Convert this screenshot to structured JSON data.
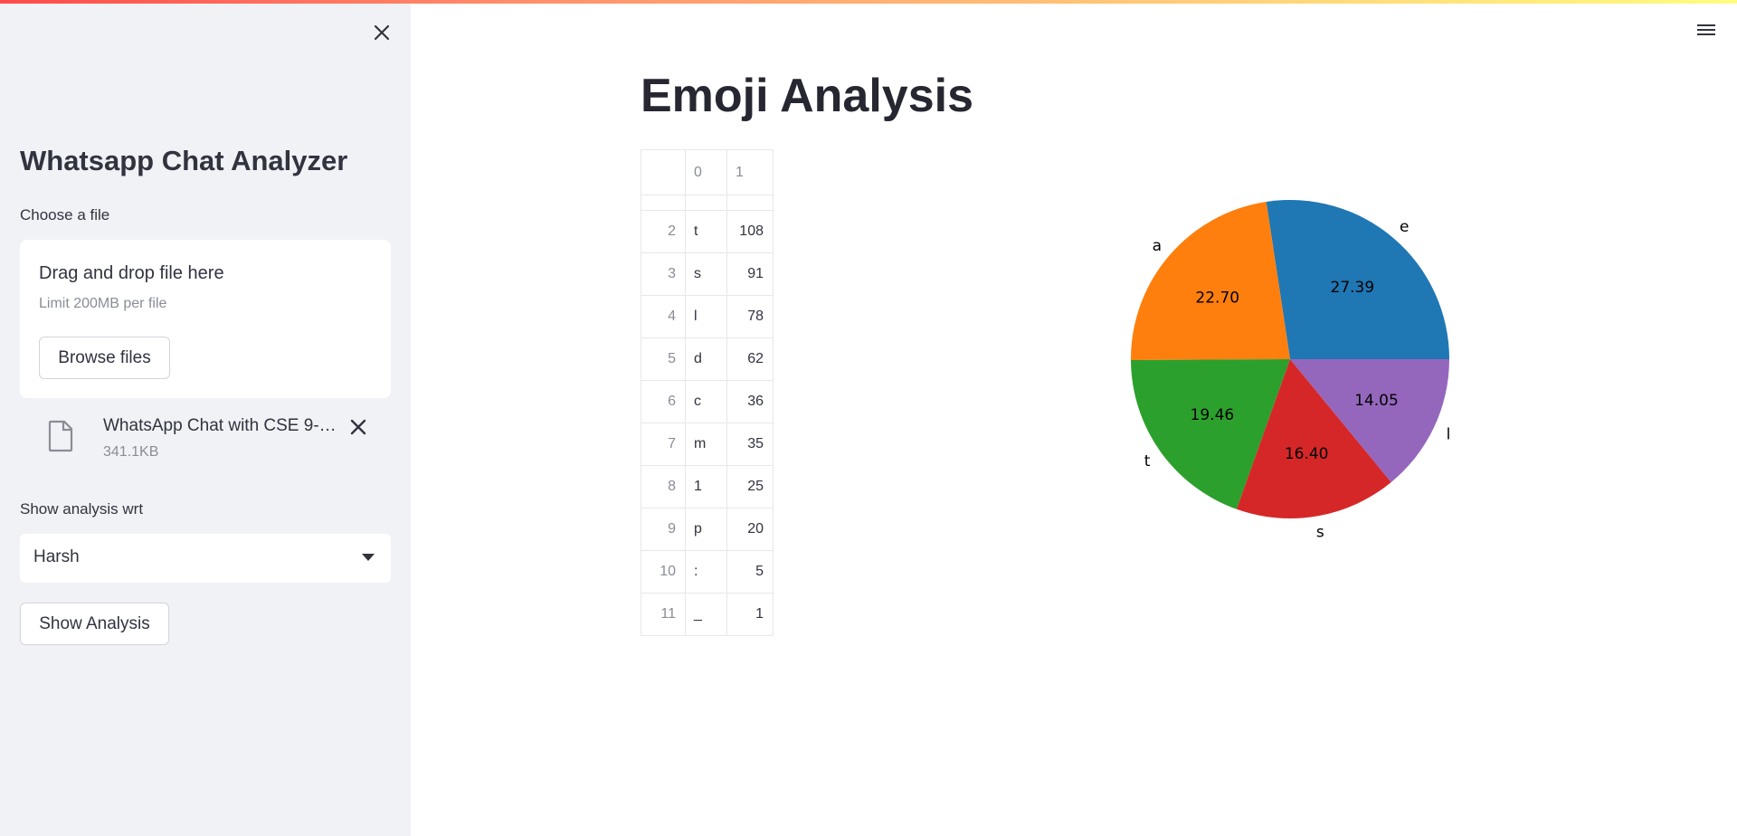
{
  "sidebar": {
    "title": "Whatsapp Chat Analyzer",
    "file_label": "Choose a file",
    "dropzone_title": "Drag and drop file here",
    "dropzone_limit": "Limit 200MB per file",
    "browse_label": "Browse files",
    "file_name": "WhatsApp Chat with CSE 9-…",
    "file_size": "341.1KB",
    "analysis_label": "Show analysis wrt",
    "selected_user": "Harsh",
    "show_button": "Show Analysis"
  },
  "main": {
    "title": "Emoji Analysis",
    "table": {
      "headers": [
        "0",
        "1"
      ],
      "rows": [
        {
          "idx": "2",
          "c0": "t",
          "c1": "108"
        },
        {
          "idx": "3",
          "c0": "s",
          "c1": "91"
        },
        {
          "idx": "4",
          "c0": "l",
          "c1": "78"
        },
        {
          "idx": "5",
          "c0": "d",
          "c1": "62"
        },
        {
          "idx": "6",
          "c0": "c",
          "c1": "36"
        },
        {
          "idx": "7",
          "c0": "m",
          "c1": "35"
        },
        {
          "idx": "8",
          "c0": "1",
          "c1": "25"
        },
        {
          "idx": "9",
          "c0": "p",
          "c1": "20"
        },
        {
          "idx": "10",
          "c0": ":",
          "c1": "5"
        },
        {
          "idx": "11",
          "c0": "_",
          "c1": "1"
        }
      ]
    }
  },
  "chart_data": {
    "type": "pie",
    "categories": [
      "e",
      "a",
      "t",
      "s",
      "l"
    ],
    "values": [
      27.39,
      22.7,
      19.46,
      16.4,
      14.05
    ],
    "labels": [
      "27.39",
      "22.70",
      "19.46",
      "16.40",
      "14.05"
    ],
    "colors": [
      "#1f77b4",
      "#ff7f0e",
      "#2ca02c",
      "#d62728",
      "#9467bd"
    ]
  }
}
